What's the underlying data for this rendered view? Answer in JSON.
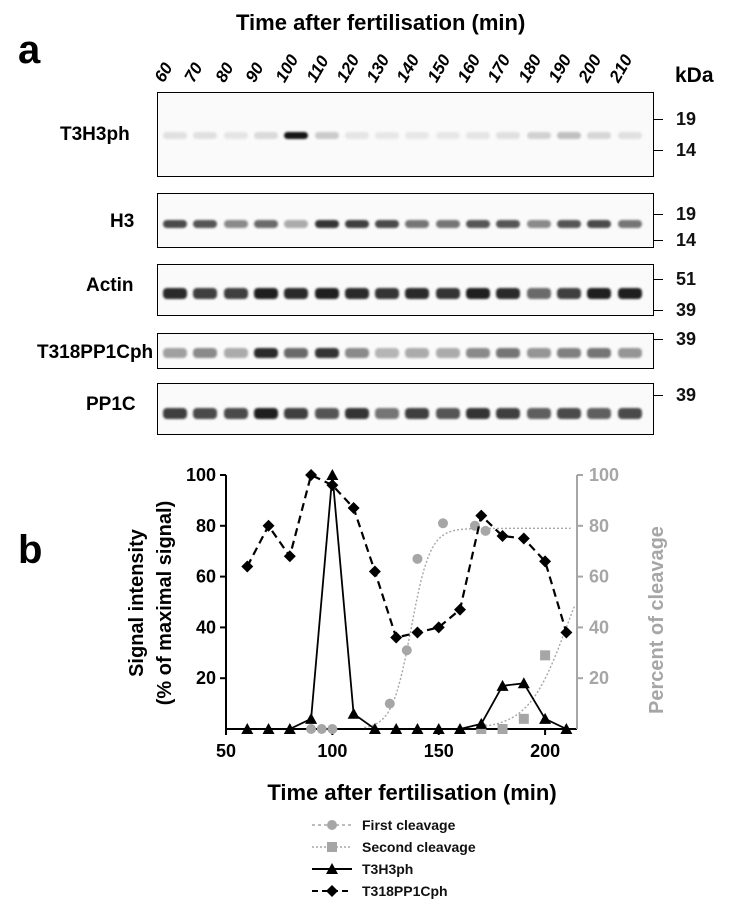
{
  "panel_a": {
    "letter": "a",
    "title": "Time after fertilisation (min)",
    "lanes": [
      "60",
      "70",
      "80",
      "90",
      "100",
      "110",
      "120",
      "130",
      "140",
      "150",
      "160",
      "170",
      "180",
      "190",
      "200",
      "210"
    ],
    "kda_label": "kDa",
    "rows": [
      {
        "label": "T3H3ph",
        "markers": [
          "19",
          "14"
        ]
      },
      {
        "label": "H3",
        "markers": [
          "19",
          "14"
        ]
      },
      {
        "label": "Actin",
        "markers": [
          "51",
          "39"
        ]
      },
      {
        "label": "T318PP1Cph",
        "markers": [
          "39"
        ]
      },
      {
        "label": "PP1C",
        "markers": [
          "39"
        ]
      }
    ],
    "band_intensity": {
      "T3H3ph": [
        0.05,
        0.05,
        0.03,
        0.08,
        1.0,
        0.15,
        0.03,
        0.02,
        0.02,
        0.02,
        0.03,
        0.05,
        0.12,
        0.2,
        0.1,
        0.05
      ],
      "H3": [
        0.75,
        0.7,
        0.45,
        0.6,
        0.3,
        0.85,
        0.8,
        0.75,
        0.55,
        0.55,
        0.7,
        0.7,
        0.45,
        0.7,
        0.75,
        0.55
      ],
      "Actin": [
        0.9,
        0.8,
        0.8,
        0.95,
        0.9,
        0.95,
        0.9,
        0.85,
        0.9,
        0.85,
        0.95,
        0.9,
        0.6,
        0.8,
        0.95,
        0.95
      ],
      "T318PP1Cph": [
        0.35,
        0.45,
        0.3,
        0.9,
        0.6,
        0.85,
        0.45,
        0.25,
        0.3,
        0.3,
        0.45,
        0.55,
        0.4,
        0.5,
        0.55,
        0.4
      ],
      "PP1C": [
        0.8,
        0.75,
        0.75,
        0.95,
        0.8,
        0.7,
        0.85,
        0.55,
        0.8,
        0.7,
        0.85,
        0.8,
        0.65,
        0.75,
        0.65,
        0.75
      ]
    }
  },
  "panel_b": {
    "letter": "b",
    "chart_data": {
      "type": "line",
      "xlabel": "Time after fertilisation (min)",
      "ylabel_left_line1": "Signal intensity",
      "ylabel_left_line2": "(% of maximal signal)",
      "ylabel_right": "Percent of cleavage",
      "xlim": [
        50,
        215
      ],
      "ylim": [
        0,
        100
      ],
      "x_ticks": [
        50,
        100,
        150,
        200
      ],
      "y_ticks_left": [
        20,
        40,
        60,
        80,
        100
      ],
      "y_ticks_right": [
        20,
        40,
        60,
        80,
        100
      ],
      "series": [
        {
          "name": "First cleavage",
          "color": "#a6a6a6",
          "marker": "circle",
          "x": [
            90,
            95,
            100,
            127,
            135,
            140,
            152,
            167,
            172
          ],
          "y": [
            0,
            0,
            0,
            10,
            31,
            67,
            81,
            80,
            78
          ]
        },
        {
          "name": "Second cleavage",
          "color": "#a6a6a6",
          "marker": "square",
          "x": [
            170,
            180,
            190,
            200
          ],
          "y": [
            0,
            0,
            4,
            29
          ]
        },
        {
          "name": "T3H3ph",
          "color": "#000000",
          "marker": "triangle",
          "x": [
            60,
            70,
            80,
            90,
            100,
            110,
            120,
            130,
            140,
            150,
            160,
            170,
            180,
            190,
            200,
            210
          ],
          "y": [
            0,
            0,
            0,
            4,
            100,
            6,
            0,
            0,
            0,
            0,
            0,
            2,
            17,
            18,
            4,
            0
          ]
        },
        {
          "name": "T318PP1Cph",
          "color": "#000000",
          "marker": "diamond",
          "x": [
            60,
            70,
            80,
            90,
            100,
            110,
            120,
            130,
            140,
            150,
            160,
            170,
            180,
            190,
            200,
            210
          ],
          "y": [
            64,
            80,
            68,
            100,
            96,
            87,
            62,
            36,
            38,
            40,
            47,
            84,
            76,
            75,
            66,
            38
          ]
        }
      ]
    },
    "legend": [
      {
        "label": "First cleavage"
      },
      {
        "label": "Second cleavage"
      },
      {
        "label": "T3H3ph"
      },
      {
        "label": "T318PP1Cph"
      }
    ]
  }
}
